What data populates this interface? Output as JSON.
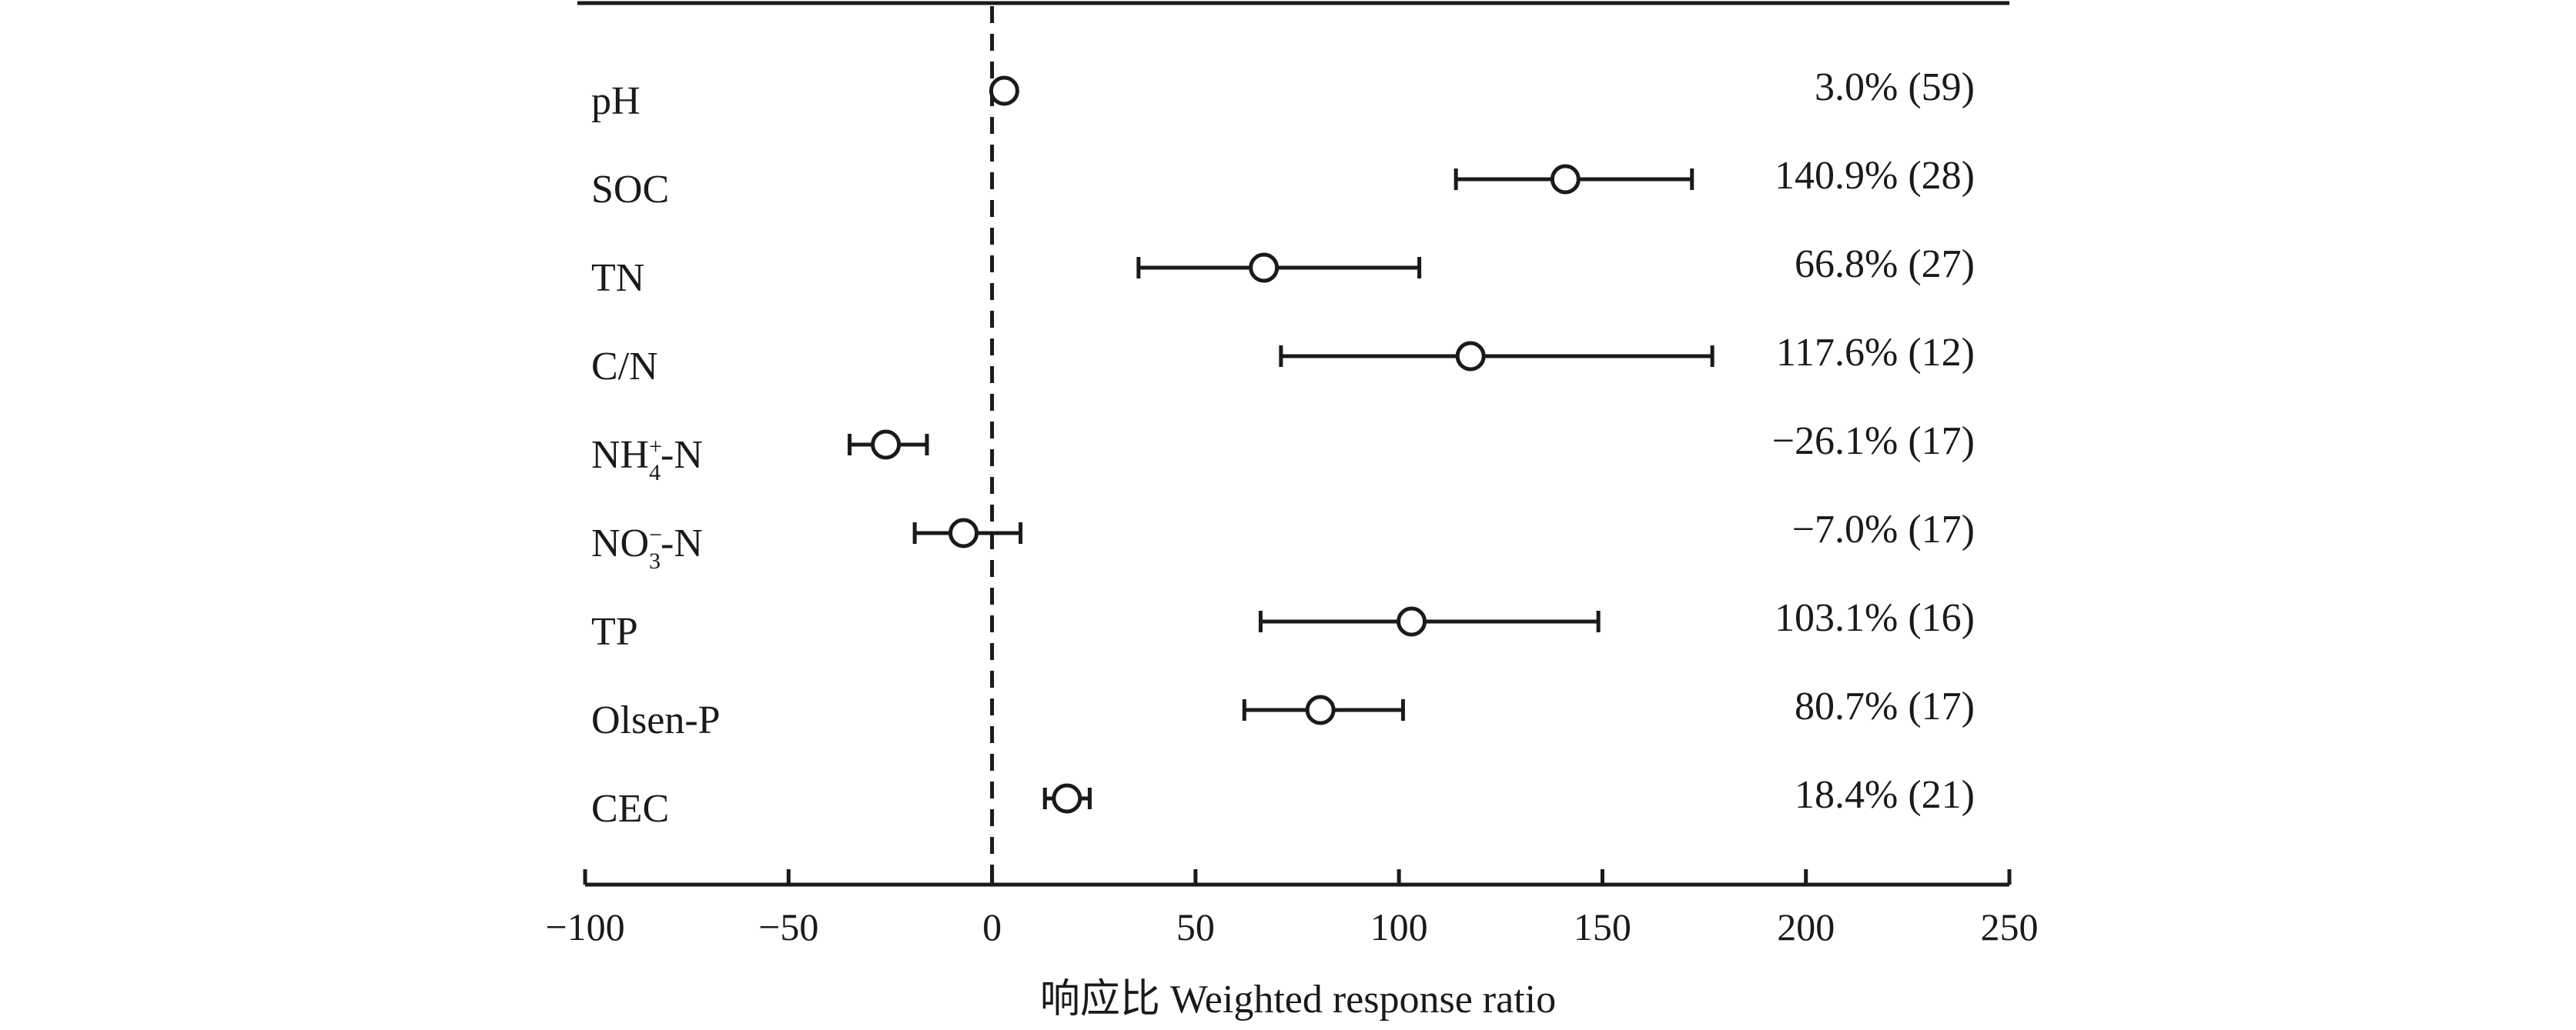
{
  "chart_data": {
    "type": "scatter",
    "subtype": "forest-plot",
    "xlabel": "响应比 Weighted response ratio",
    "xlim": [
      -100,
      250
    ],
    "xticks": [
      -100,
      -50,
      0,
      50,
      100,
      150,
      200,
      250
    ],
    "xtick_labels": [
      "−100",
      "−50",
      "0",
      "50",
      "100",
      "150",
      "200",
      "250"
    ],
    "reference_line_x": 0,
    "grid": false,
    "legend": "none",
    "rows": [
      {
        "label": "pH",
        "sup": "",
        "sub": "",
        "suffix": "",
        "mean": 3.0,
        "ci_low": null,
        "ci_high": null,
        "text": "3.0% (59)"
      },
      {
        "label": "SOC",
        "sup": "",
        "sub": "",
        "suffix": "",
        "mean": 140.9,
        "ci_low": 114,
        "ci_high": 172,
        "text": "140.9% (28)"
      },
      {
        "label": "TN",
        "sup": "",
        "sub": "",
        "suffix": "",
        "mean": 66.8,
        "ci_low": 36,
        "ci_high": 105,
        "text": "66.8% (27)"
      },
      {
        "label": "C/N",
        "sup": "",
        "sub": "",
        "suffix": "",
        "mean": 117.6,
        "ci_low": 71,
        "ci_high": 177,
        "text": "117.6% (12)"
      },
      {
        "label": "NH",
        "sup": "+",
        "sub": "4",
        "suffix": "-N",
        "mean": -26.1,
        "ci_low": -35,
        "ci_high": -16,
        "text": "−26.1% (17)"
      },
      {
        "label": "NO",
        "sup": "−",
        "sub": "3",
        "suffix": "-N",
        "mean": -7.0,
        "ci_low": -19,
        "ci_high": 7,
        "text": "−7.0% (17)"
      },
      {
        "label": "TP",
        "sup": "",
        "sub": "",
        "suffix": "",
        "mean": 103.1,
        "ci_low": 66,
        "ci_high": 149,
        "text": "103.1% (16)"
      },
      {
        "label": "Olsen-P",
        "sup": "",
        "sub": "",
        "suffix": "",
        "mean": 80.7,
        "ci_low": 62,
        "ci_high": 101,
        "text": "80.7% (17)"
      },
      {
        "label": "CEC",
        "sup": "",
        "sub": "",
        "suffix": "",
        "mean": 18.4,
        "ci_low": 13,
        "ci_high": 24,
        "text": "18.4% (21)"
      }
    ]
  }
}
